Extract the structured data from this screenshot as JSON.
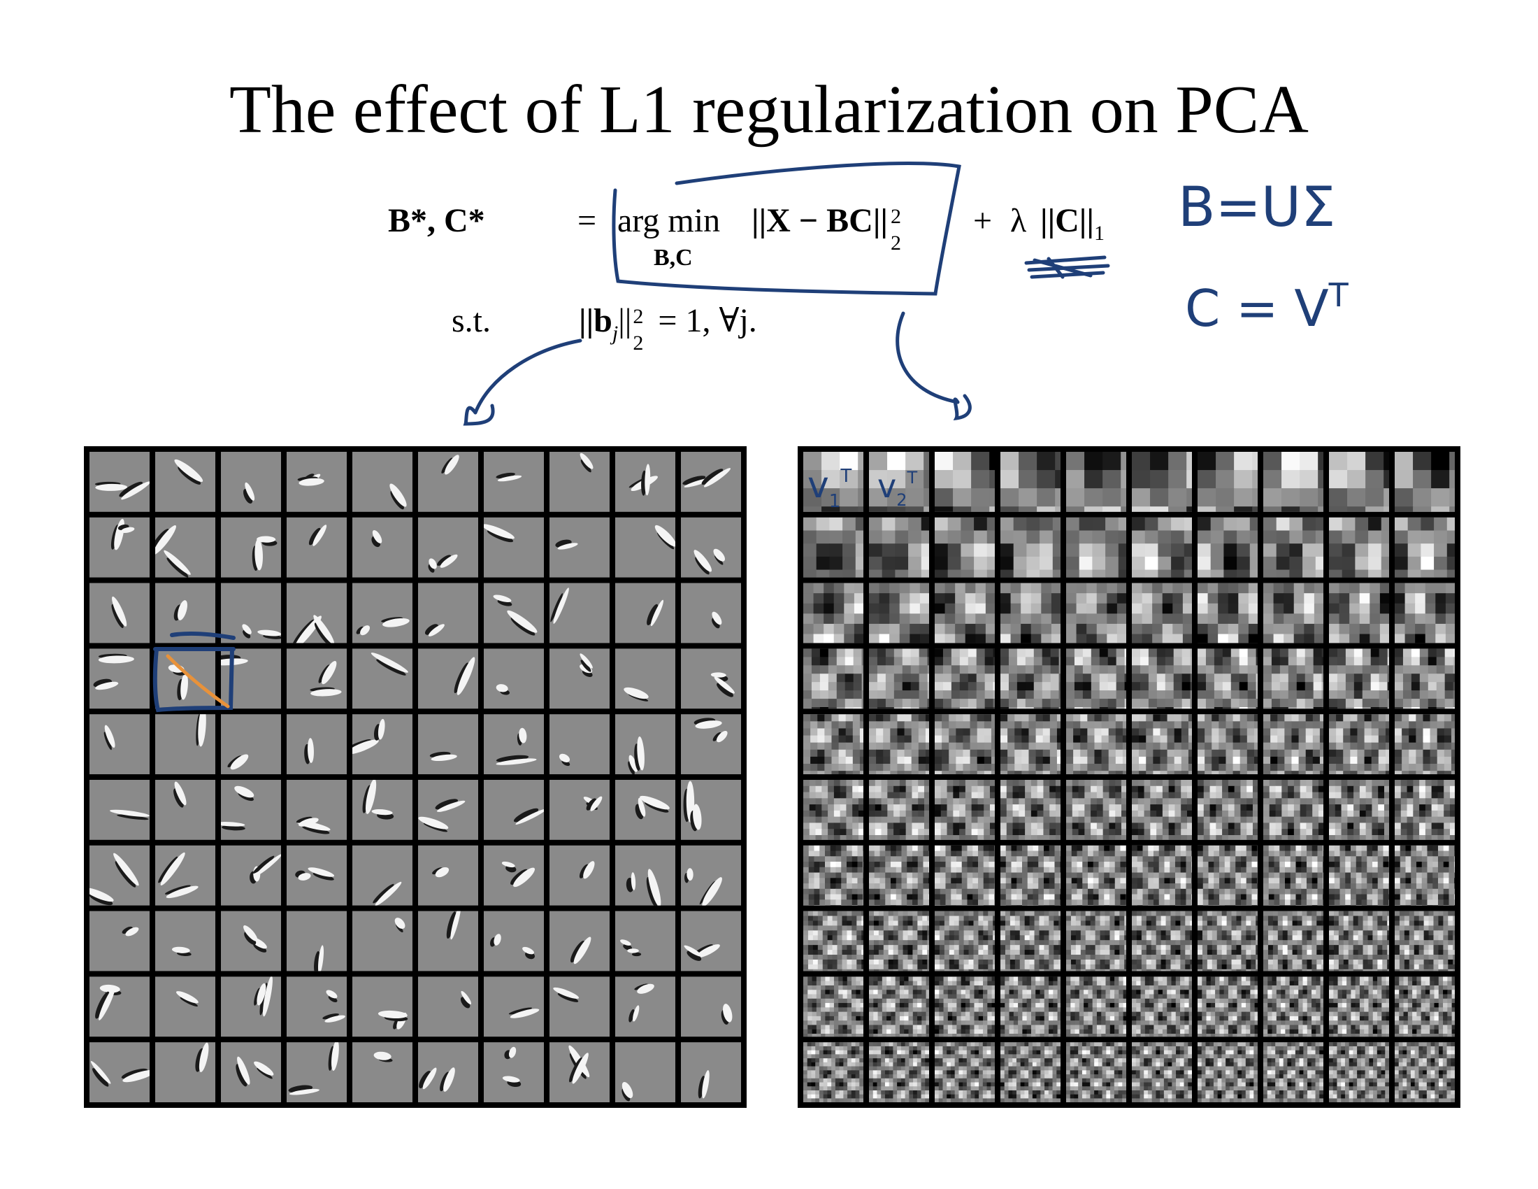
{
  "slide": {
    "title": "The effect of L1 regularization on PCA"
  },
  "equation": {
    "line1_lhs": "B*, C*",
    "line1_eq": "=",
    "argmin": "arg min",
    "argmin_sub": "B,C",
    "objective": "||X − BC||",
    "objective_sup": "2",
    "objective_sub": "2",
    "plus": "+",
    "lambda": "λ",
    "l1_term": "||C||",
    "l1_sub": "1",
    "line2_lhs": "s.t.",
    "constraint": "||b",
    "constraint_j": "j",
    "constraint_rest": "||",
    "constraint_sup": "2",
    "constraint_sub": "2",
    "constraint_tail": "= 1, ∀j."
  },
  "annotations": {
    "b_eq": "B=UΣ",
    "c_eq": "C = V",
    "c_sup": "T",
    "v1": "v",
    "v1_sub": "1",
    "v1_sup": "T",
    "v2": "v",
    "v2_sub": "2",
    "v2_sup": "T",
    "ink_color": "#1f3f78",
    "highlight_color": "#e8923a"
  },
  "left_grid": {
    "rows": 10,
    "cols": 10,
    "description_colors": {
      "background": "#8a8a8a",
      "border": "#000000"
    }
  },
  "right_grid": {
    "rows": 10,
    "cols": 10,
    "description_colors": {
      "background": "#8a8a8a",
      "border": "#000000"
    }
  }
}
